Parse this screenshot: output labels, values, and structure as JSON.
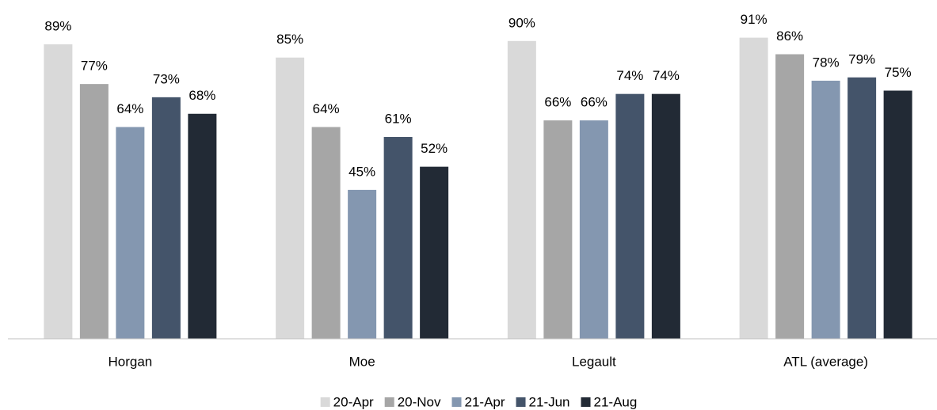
{
  "chart_data": {
    "type": "bar",
    "categories": [
      "Horgan",
      "Moe",
      "Legault",
      "ATL (average)"
    ],
    "series": [
      {
        "name": "20-Apr",
        "color": "#d9d9d9",
        "values": [
          89,
          85,
          90,
          91
        ],
        "value_labels": [
          "89%",
          "85%",
          "90%",
          "91%"
        ]
      },
      {
        "name": "20-Nov",
        "color": "#a6a6a6",
        "values": [
          77,
          64,
          66,
          86
        ],
        "value_labels": [
          "77%",
          "64%",
          "66%",
          "86%"
        ]
      },
      {
        "name": "21-Apr",
        "color": "#8497b0",
        "values": [
          64,
          45,
          66,
          78
        ],
        "value_labels": [
          "64%",
          "45%",
          "66%",
          "78%"
        ]
      },
      {
        "name": "21-Jun",
        "color": "#44546a",
        "values": [
          73,
          61,
          74,
          79
        ],
        "value_labels": [
          "73%",
          "61%",
          "74%",
          "79%"
        ]
      },
      {
        "name": "21-Aug",
        "color": "#222a35",
        "values": [
          68,
          52,
          74,
          75
        ],
        "value_labels": [
          "68%",
          "52%",
          "74%",
          "75%"
        ]
      }
    ],
    "ylim": [
      0,
      100
    ]
  }
}
